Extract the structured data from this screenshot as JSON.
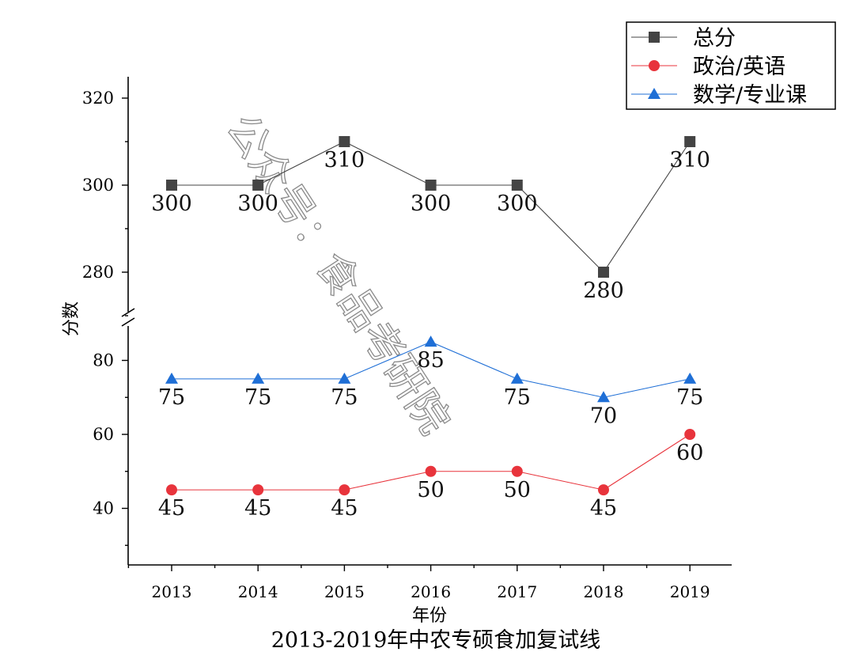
{
  "chart_data": {
    "type": "line",
    "title": "2013-2019年中农专硕食加复试线",
    "xlabel": "年份",
    "ylabel": "分数",
    "categories": [
      "2013",
      "2014",
      "2015",
      "2016",
      "2017",
      "2018",
      "2019"
    ],
    "y_axis_break": true,
    "upper_ylim": [
      270,
      325
    ],
    "lower_ylim": [
      25,
      90
    ],
    "upper_yticks": [
      280,
      300,
      320
    ],
    "lower_yticks": [
      40,
      60,
      80
    ],
    "grid": false,
    "legend_position": "top-right",
    "series": [
      {
        "name": "总分",
        "marker": "square",
        "color": "#444444",
        "values": [
          300,
          300,
          310,
          300,
          300,
          280,
          310
        ],
        "segment": "upper"
      },
      {
        "name": "政治/英语",
        "marker": "circle",
        "color": "#e8343c",
        "values": [
          45,
          45,
          45,
          50,
          50,
          45,
          60
        ],
        "segment": "lower"
      },
      {
        "name": "数学/专业课",
        "marker": "triangle",
        "color": "#1f6fd6",
        "values": [
          75,
          75,
          75,
          85,
          75,
          70,
          75
        ],
        "segment": "lower"
      }
    ],
    "watermark": "公众号：食品考研院"
  }
}
